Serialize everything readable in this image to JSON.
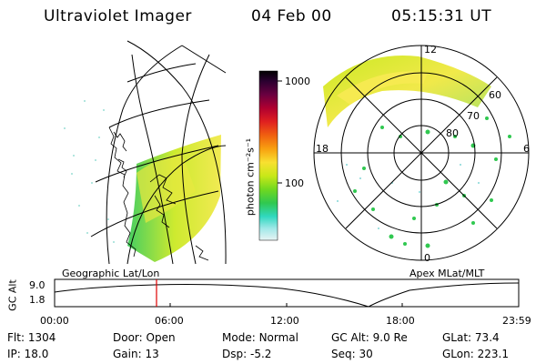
{
  "header": {
    "instrument": "Ultraviolet Imager",
    "date": "04 Feb 00",
    "time": "05:15:31 UT"
  },
  "colorbar": {
    "unit_label": "photon cm⁻²s⁻¹",
    "tick_labels": [
      "1000",
      "100"
    ],
    "stops": [
      "#000000",
      "#2a0030",
      "#6a0040",
      "#b00030",
      "#e02020",
      "#f06010",
      "#f8a010",
      "#f8e030",
      "#c8e818",
      "#70d820",
      "#30c850",
      "#30d8c0",
      "#a0e8e8",
      "#e8f4f4"
    ]
  },
  "geo_panel": {
    "caption": "Geographic Lat/Lon"
  },
  "polar_panel": {
    "caption": "Apex MLat/MLT",
    "mlt_labels": {
      "top": "12",
      "left": "18",
      "right": "6",
      "bottom": "0"
    },
    "lat_labels": [
      "60",
      "70",
      "80"
    ]
  },
  "altitude_plot": {
    "axis_label": "GC Alt",
    "y_ticks": [
      "9.0",
      "1.8"
    ],
    "x_ticks": [
      "00:00",
      "06:00",
      "12:00",
      "18:00",
      "23:59"
    ],
    "marker_color": "#e00000"
  },
  "status": {
    "row1": [
      {
        "key": "Flt:",
        "value": "1304"
      },
      {
        "key": "Door:",
        "value": "Open"
      },
      {
        "key": "Mode:",
        "value": "Normal"
      },
      {
        "key": "GC Alt:",
        "value": "9.0 Re"
      },
      {
        "key": "GLat:",
        "value": "73.4"
      }
    ],
    "row2": [
      {
        "key": "IP:",
        "value": "18.0"
      },
      {
        "key": "Gain:",
        "value": "13"
      },
      {
        "key": "Dsp:",
        "value": "-5.2"
      },
      {
        "key": "Seq:",
        "value": "30"
      },
      {
        "key": "GLon:",
        "value": "223.1"
      }
    ]
  }
}
